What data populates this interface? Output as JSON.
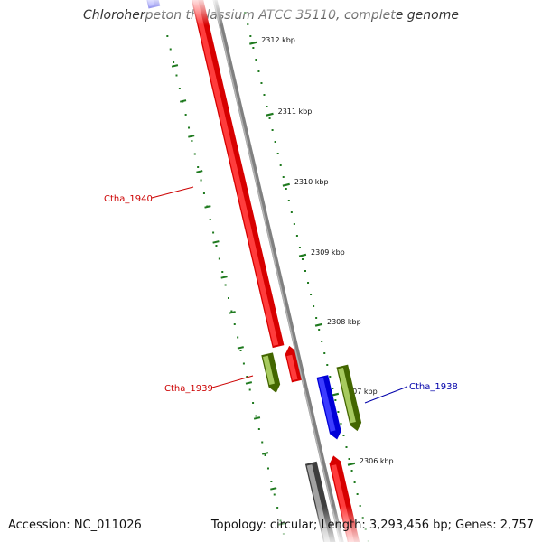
{
  "title": "Chloroherpeton thalassium ATCC 35110, complete genome",
  "accession": "Accession: NC_011026",
  "summary": "Topology: circular; Length: 3,293,456 bp; Genes: 2,757",
  "colors": {
    "background": "#ffffff",
    "backbone": "#808080",
    "scale": "#1f7a1f",
    "gene_red": "#ff0000",
    "gene_blue": "#0000ff",
    "gene_olive": "#6b8e23",
    "gene_gray": "#666666",
    "label_red": "#cc0000",
    "label_blue": "#0000aa"
  },
  "scale_ticks": [
    {
      "label": "2312 kbp"
    },
    {
      "label": "2311 kbp"
    },
    {
      "label": "2310 kbp"
    },
    {
      "label": "2309 kbp"
    },
    {
      "label": "2308 kbp"
    },
    {
      "label": "2307 kbp"
    },
    {
      "label": "2306 kbp"
    }
  ],
  "gene_labels": [
    {
      "text": "Ctha_1940",
      "color": "#cc0000"
    },
    {
      "text": "Ctha_1939",
      "color": "#cc0000"
    },
    {
      "text": "Ctha_1938",
      "color": "#0000aa"
    }
  ]
}
